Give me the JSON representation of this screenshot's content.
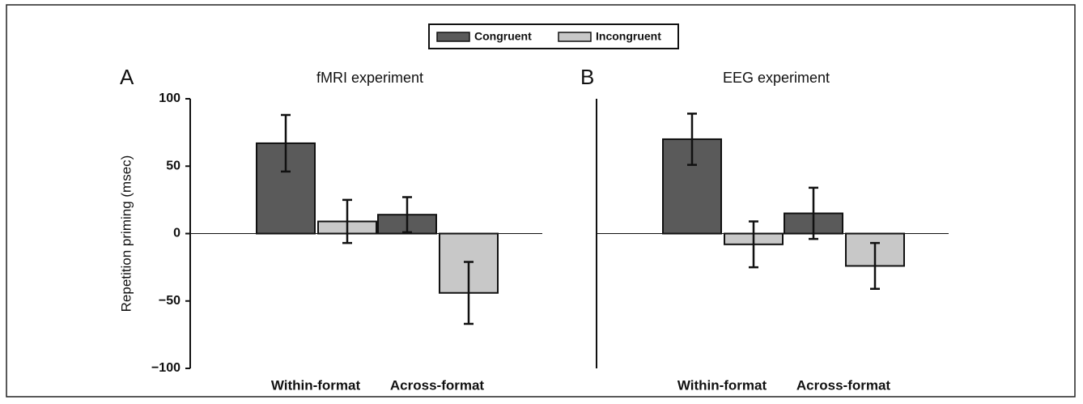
{
  "chart_data": [
    {
      "type": "bar",
      "label": "A",
      "title": "fMRI experiment",
      "y_label": "Repetition priming (msec)",
      "categories": [
        "Within-format",
        "Across-format"
      ],
      "series": [
        {
          "name": "Congruent",
          "color": "#5a5a5a",
          "values": [
            67,
            14
          ],
          "errors": [
            21,
            13
          ]
        },
        {
          "name": "Incongruent",
          "color": "#c8c8c8",
          "values": [
            9,
            -44
          ],
          "errors": [
            16,
            23
          ]
        }
      ],
      "ylim": [
        -100,
        100
      ],
      "yticks": [
        {
          "value": -100,
          "label": "−100"
        },
        {
          "value": -50,
          "label": "−50"
        },
        0,
        50,
        100
      ]
    },
    {
      "type": "bar",
      "label": "B",
      "title": "EEG experiment",
      "categories": [
        "Within-format",
        "Across-format"
      ],
      "series": [
        {
          "color": "#5a5a5a",
          "values": [
            70,
            15
          ],
          "errors": [
            19,
            19
          ]
        },
        {
          "color": "#c8c8c8",
          "values": [
            -8,
            -24
          ],
          "errors": [
            17,
            17
          ]
        }
      ],
      "ylim": [
        -100,
        100
      ]
    }
  ]
}
